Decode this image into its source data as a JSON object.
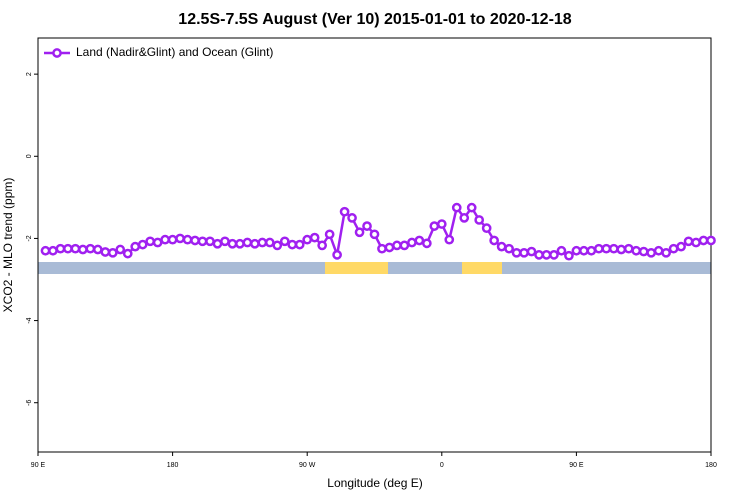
{
  "chart_data": {
    "type": "line",
    "title": "12.5S-7.5S August (Ver 10)   2015-01-01 to 2020-12-18",
    "xlabel": "Longitude (deg E)",
    "ylabel": "XCO2 - MLO trend (ppm)",
    "x": [
      95,
      100,
      105,
      110,
      115,
      120,
      125,
      130,
      135,
      140,
      145,
      150,
      155,
      160,
      165,
      170,
      175,
      180,
      185,
      190,
      195,
      200,
      205,
      210,
      215,
      220,
      225,
      230,
      235,
      240,
      245,
      250,
      255,
      260,
      265,
      270,
      275,
      280,
      285,
      290,
      295,
      300,
      305,
      310,
      315,
      320,
      325,
      330,
      335,
      340,
      345,
      350,
      355,
      360,
      365,
      370,
      375,
      380,
      385,
      390,
      395,
      400,
      405,
      410,
      415,
      420,
      425,
      430,
      435,
      440,
      445,
      450,
      455,
      460,
      465,
      470,
      475,
      480,
      485,
      490,
      495,
      500,
      505,
      510,
      515,
      520,
      525,
      530,
      535,
      540
    ],
    "series": [
      {
        "name": "Land (Nadir&Glint) and Ocean (Glint)",
        "color": "#a020f0",
        "values": [
          -2.3,
          -2.3,
          -2.25,
          -2.25,
          -2.25,
          -2.27,
          -2.25,
          -2.27,
          -2.33,
          -2.35,
          -2.27,
          -2.37,
          -2.2,
          -2.15,
          -2.07,
          -2.1,
          -2.03,
          -2.03,
          -2.0,
          -2.03,
          -2.05,
          -2.07,
          -2.07,
          -2.13,
          -2.07,
          -2.13,
          -2.13,
          -2.1,
          -2.13,
          -2.1,
          -2.1,
          -2.17,
          -2.07,
          -2.15,
          -2.15,
          -2.03,
          -1.98,
          -2.17,
          -1.9,
          -2.4,
          -1.35,
          -1.5,
          -1.85,
          -1.7,
          -1.9,
          -2.25,
          -2.22,
          -2.17,
          -2.17,
          -2.1,
          -2.05,
          -2.12,
          -1.7,
          -1.65,
          -2.03,
          -1.25,
          -1.5,
          -1.25,
          -1.55,
          -1.75,
          -2.05,
          -2.2,
          -2.25,
          -2.35,
          -2.35,
          -2.32,
          -2.4,
          -2.4,
          -2.4,
          -2.3,
          -2.42,
          -2.3,
          -2.3,
          -2.3,
          -2.25,
          -2.25,
          -2.25,
          -2.27,
          -2.25,
          -2.3,
          -2.32,
          -2.35,
          -2.3,
          -2.35,
          -2.25,
          -2.2,
          -2.07,
          -2.1,
          -2.05,
          -2.05
        ]
      }
    ],
    "xlim": [
      90,
      540
    ],
    "xticks": [
      {
        "value": 90,
        "label": "90 E"
      },
      180,
      {
        "value": 270,
        "label": "90 W"
      },
      {
        "value": 360,
        "label": "0"
      },
      {
        "value": 450,
        "label": "90 E"
      },
      {
        "value": 540,
        "label": "180"
      }
    ],
    "ylim": [
      -7.2,
      2.88
    ],
    "yticks": [
      2,
      0,
      -2,
      -4,
      -6
    ],
    "legend": "top-left"
  }
}
